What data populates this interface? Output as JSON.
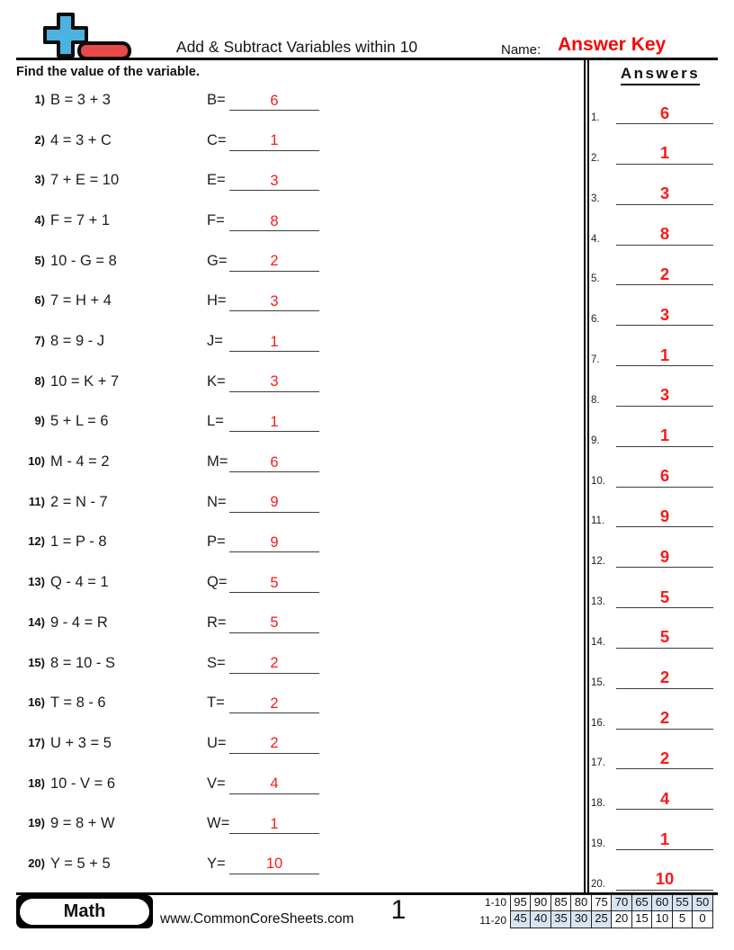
{
  "header": {
    "title": "Add & Subtract Variables within 10",
    "name_label": "Name:",
    "answer_key": "Answer Key",
    "instruction": "Find the value of the variable.",
    "answers_title": "Answers"
  },
  "problems": [
    {
      "n": "1)",
      "equation": "B = 3 + 3",
      "variable": "B=",
      "answer": "6"
    },
    {
      "n": "2)",
      "equation": "4 = 3 + C",
      "variable": "C=",
      "answer": "1"
    },
    {
      "n": "3)",
      "equation": "7 + E = 10",
      "variable": "E=",
      "answer": "3"
    },
    {
      "n": "4)",
      "equation": "F = 7 + 1",
      "variable": "F=",
      "answer": "8"
    },
    {
      "n": "5)",
      "equation": "10 - G = 8",
      "variable": "G=",
      "answer": "2"
    },
    {
      "n": "6)",
      "equation": "7 = H + 4",
      "variable": "H=",
      "answer": "3"
    },
    {
      "n": "7)",
      "equation": "8 = 9 - J",
      "variable": "J=",
      "answer": "1"
    },
    {
      "n": "8)",
      "equation": "10 = K + 7",
      "variable": "K=",
      "answer": "3"
    },
    {
      "n": "9)",
      "equation": "5 + L = 6",
      "variable": "L=",
      "answer": "1"
    },
    {
      "n": "10)",
      "equation": "M - 4 = 2",
      "variable": "M=",
      "answer": "6"
    },
    {
      "n": "11)",
      "equation": "2 = N - 7",
      "variable": "N=",
      "answer": "9"
    },
    {
      "n": "12)",
      "equation": "1 = P - 8",
      "variable": "P=",
      "answer": "9"
    },
    {
      "n": "13)",
      "equation": "Q - 4 = 1",
      "variable": "Q=",
      "answer": "5"
    },
    {
      "n": "14)",
      "equation": "9 - 4 = R",
      "variable": "R=",
      "answer": "5"
    },
    {
      "n": "15)",
      "equation": "8 = 10 - S",
      "variable": "S=",
      "answer": "2"
    },
    {
      "n": "16)",
      "equation": "T = 8 - 6",
      "variable": "T=",
      "answer": "2"
    },
    {
      "n": "17)",
      "equation": "U + 3 = 5",
      "variable": "U=",
      "answer": "2"
    },
    {
      "n": "18)",
      "equation": "10 - V = 6",
      "variable": "V=",
      "answer": "4"
    },
    {
      "n": "19)",
      "equation": "9 = 8 + W",
      "variable": "W=",
      "answer": "1"
    },
    {
      "n": "20)",
      "equation": "Y = 5 + 5",
      "variable": "Y=",
      "answer": "10"
    }
  ],
  "answers_column": [
    {
      "n": "1.",
      "answer": "6"
    },
    {
      "n": "2.",
      "answer": "1"
    },
    {
      "n": "3.",
      "answer": "3"
    },
    {
      "n": "4.",
      "answer": "8"
    },
    {
      "n": "5.",
      "answer": "2"
    },
    {
      "n": "6.",
      "answer": "3"
    },
    {
      "n": "7.",
      "answer": "1"
    },
    {
      "n": "8.",
      "answer": "3"
    },
    {
      "n": "9.",
      "answer": "1"
    },
    {
      "n": "10.",
      "answer": "6"
    },
    {
      "n": "11.",
      "answer": "9"
    },
    {
      "n": "12.",
      "answer": "9"
    },
    {
      "n": "13.",
      "answer": "5"
    },
    {
      "n": "14.",
      "answer": "5"
    },
    {
      "n": "15.",
      "answer": "2"
    },
    {
      "n": "16.",
      "answer": "2"
    },
    {
      "n": "17.",
      "answer": "2"
    },
    {
      "n": "18.",
      "answer": "4"
    },
    {
      "n": "19.",
      "answer": "1"
    },
    {
      "n": "20.",
      "answer": "10"
    }
  ],
  "footer": {
    "subject": "Math",
    "website": "www.CommonCoreSheets.com",
    "page_number": "1",
    "grading_rows": [
      {
        "label": "1-10",
        "cells": [
          {
            "v": "95",
            "hl": false
          },
          {
            "v": "90",
            "hl": false
          },
          {
            "v": "85",
            "hl": false
          },
          {
            "v": "80",
            "hl": false
          },
          {
            "v": "75",
            "hl": false
          },
          {
            "v": "70",
            "hl": true
          },
          {
            "v": "65",
            "hl": true
          },
          {
            "v": "60",
            "hl": true
          },
          {
            "v": "55",
            "hl": true
          },
          {
            "v": "50",
            "hl": true
          }
        ]
      },
      {
        "label": "11-20",
        "cells": [
          {
            "v": "45",
            "hl": true
          },
          {
            "v": "40",
            "hl": true
          },
          {
            "v": "35",
            "hl": true
          },
          {
            "v": "30",
            "hl": true
          },
          {
            "v": "25",
            "hl": true
          },
          {
            "v": "20",
            "hl": false
          },
          {
            "v": "15",
            "hl": false
          },
          {
            "v": "10",
            "hl": false
          },
          {
            "v": "5",
            "hl": false
          },
          {
            "v": "0",
            "hl": false
          }
        ]
      }
    ]
  },
  "icons": {
    "plus_minus_icon": "plus-minus-math-icon"
  },
  "colors": {
    "answer_red": "#f81a1a",
    "answer_key_red": "#f70707",
    "plus_blue": "#4cb2e2",
    "minus_red": "#e8494b",
    "grade_cell_blue": "#d8e4f4"
  }
}
